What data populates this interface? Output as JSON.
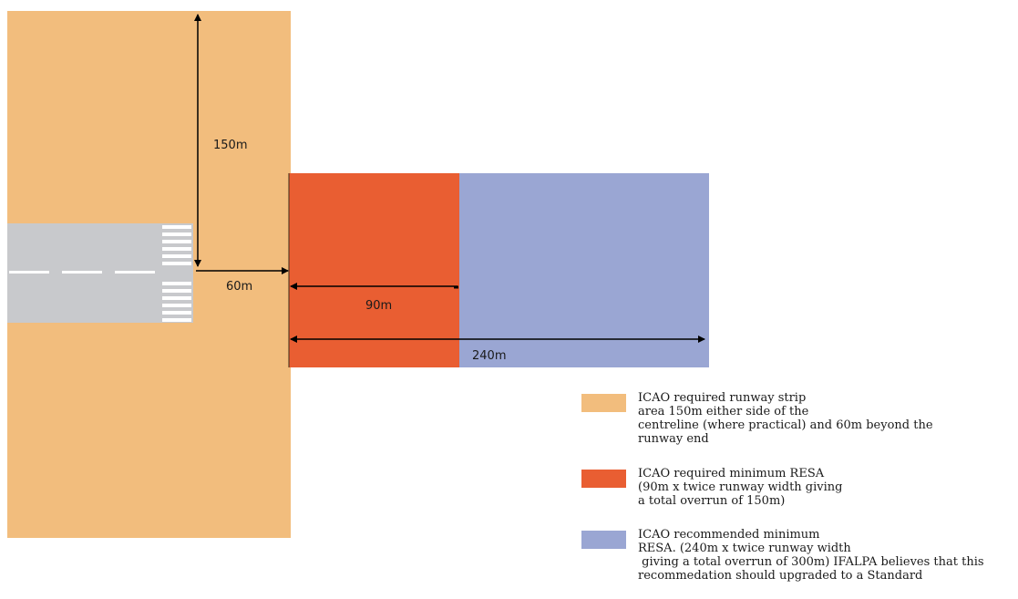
{
  "colors": {
    "runway_strip": "#F2BD7D",
    "min_resa": "#E95E32",
    "rec_resa": "#9AA6D3",
    "runway": "#C8C9CC",
    "markings": "#FFFFFF",
    "arrows": "#000000"
  },
  "dimensions": {
    "strip_half_width": "150m",
    "strip_beyond_end": "60m",
    "min_resa_length": "90m",
    "rec_resa_length": "240m"
  },
  "legend": [
    {
      "key": "runway_strip",
      "lines": [
        "ICAO required runway strip",
        "area 150m either side of the",
        "centreline (where practical) and 60m beyond the",
        "runway end"
      ]
    },
    {
      "key": "min_resa",
      "lines": [
        "ICAO required minimum RESA",
        "(90m x twice runway width giving",
        "a total overrun of 150m)"
      ]
    },
    {
      "key": "rec_resa",
      "lines": [
        "ICAO recommended minimum",
        "RESA. (240m x twice runway width",
        " giving a total overrun of 300m) IFALPA believes that this",
        "recommedation should upgraded to a Standard"
      ]
    }
  ]
}
